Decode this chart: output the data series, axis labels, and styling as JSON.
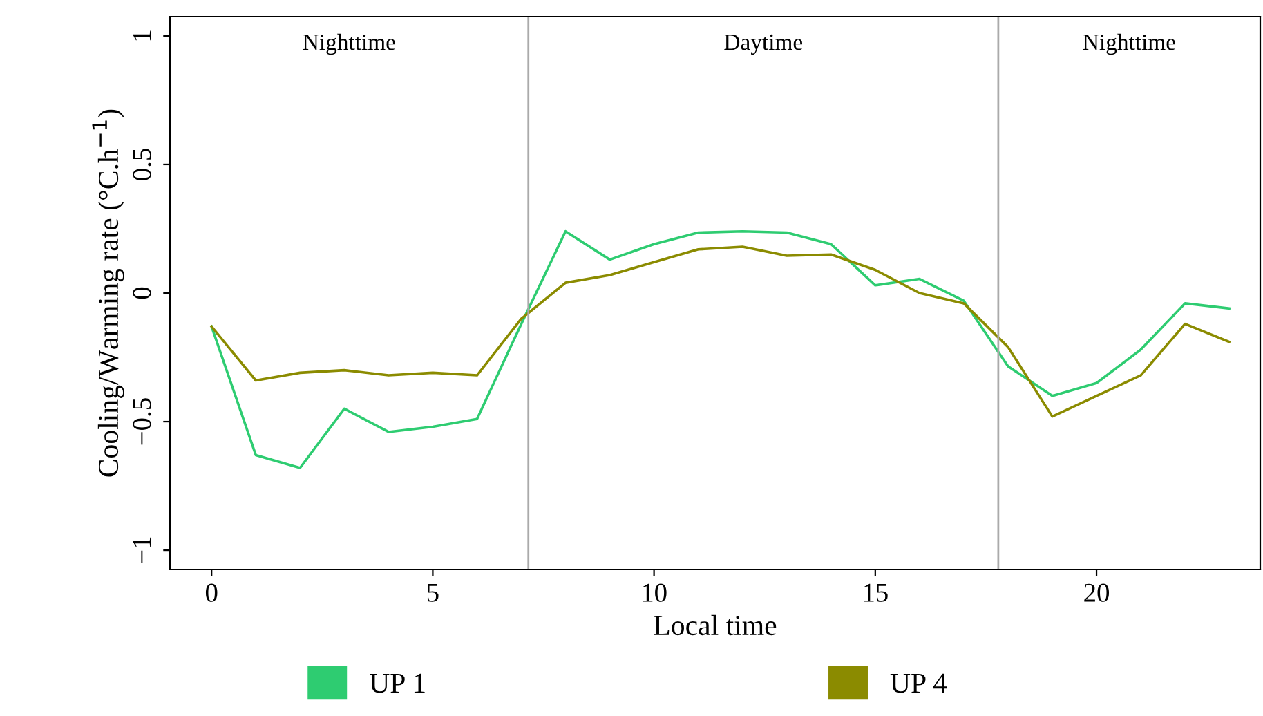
{
  "chart_data": {
    "type": "line",
    "xlabel": "Local time",
    "ylabel": "Cooling/Warming rate (°C.h$^{−1}$)",
    "x": [
      0,
      1,
      2,
      3,
      4,
      5,
      6,
      7,
      8,
      9,
      10,
      11,
      12,
      13,
      14,
      15,
      16,
      17,
      18,
      19,
      20,
      21,
      22,
      23
    ],
    "series": [
      {
        "name": "UP 1",
        "color": "#2ecc71",
        "values": [
          -0.13,
          -0.63,
          -0.68,
          -0.45,
          -0.54,
          -0.52,
          -0.49,
          -0.12,
          0.24,
          0.13,
          0.19,
          0.235,
          0.24,
          0.235,
          0.19,
          0.03,
          0.055,
          -0.03,
          -0.285,
          -0.4,
          -0.35,
          -0.22,
          -0.04,
          -0.06
        ]
      },
      {
        "name": "UP 4",
        "color": "#8b8b00",
        "values": [
          -0.13,
          -0.34,
          -0.31,
          -0.3,
          -0.32,
          -0.31,
          -0.32,
          -0.1,
          0.04,
          0.07,
          0.12,
          0.17,
          0.18,
          0.145,
          0.15,
          0.09,
          0.0,
          -0.04,
          -0.21,
          -0.48,
          -0.4,
          -0.32,
          -0.12,
          -0.19
        ]
      }
    ],
    "xlim": [
      -0.94,
      23.7
    ],
    "ylim": [
      -1.075,
      1.075
    ],
    "xticks": [
      0,
      5,
      10,
      15,
      20
    ],
    "yticks": [
      {
        "value": -1,
        "label": "−1"
      },
      {
        "value": -0.5,
        "label": "−0.5"
      },
      0,
      0.5,
      1
    ],
    "ref_lines": [
      {
        "axis": "x",
        "value": 7.16,
        "color": "#aaaaaa"
      },
      {
        "axis": "x",
        "value": 17.78,
        "color": "#aaaaaa"
      }
    ],
    "annotations": [
      "Nighttime",
      "Daytime",
      "Nighttime"
    ],
    "legend": "bottom",
    "grid": false,
    "marker": "none",
    "line_style": "solid"
  }
}
